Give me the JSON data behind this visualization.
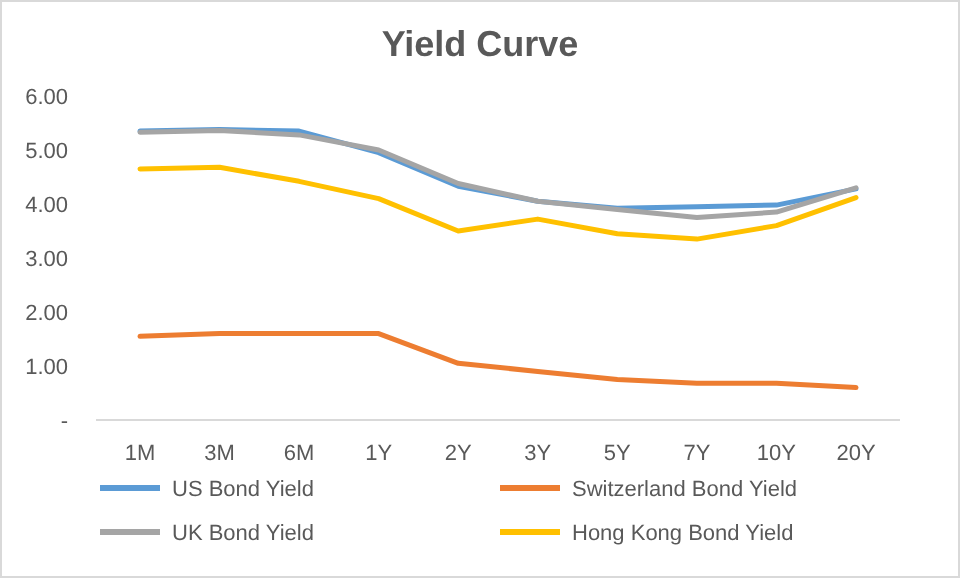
{
  "chart_data": {
    "type": "line",
    "title": "Yield Curve",
    "categories": [
      "1M",
      "3M",
      "6M",
      "1Y",
      "2Y",
      "3Y",
      "5Y",
      "7Y",
      "10Y",
      "20Y"
    ],
    "series": [
      {
        "name": "US Bond Yield",
        "color": "#5b9bd5",
        "values": [
          5.35,
          5.38,
          5.35,
          4.95,
          4.33,
          4.05,
          3.92,
          3.95,
          3.98,
          4.28
        ]
      },
      {
        "name": "Switzerland Bond Yield",
        "color": "#ed7d31",
        "values": [
          1.55,
          1.6,
          1.6,
          1.6,
          1.05,
          0.9,
          0.75,
          0.68,
          0.68,
          0.6
        ]
      },
      {
        "name": "UK Bond Yield",
        "color": "#a5a5a5",
        "values": [
          5.33,
          5.36,
          5.28,
          5.0,
          4.38,
          4.05,
          3.9,
          3.75,
          3.85,
          4.3
        ]
      },
      {
        "name": "Hong Kong Bond Yield",
        "color": "#ffc000",
        "values": [
          4.65,
          4.68,
          4.42,
          4.1,
          3.5,
          3.72,
          3.45,
          3.35,
          3.6,
          4.12
        ]
      }
    ],
    "ylim": [
      0,
      6
    ],
    "yticks": [
      {
        "value": 0,
        "label": "-"
      },
      {
        "value": 1,
        "label": "1.00"
      },
      {
        "value": 2,
        "label": "2.00"
      },
      {
        "value": 3,
        "label": "3.00"
      },
      {
        "value": 4,
        "label": "4.00"
      },
      {
        "value": 5,
        "label": "5.00"
      },
      {
        "value": 6,
        "label": "6.00"
      }
    ],
    "legend": "bottom",
    "marker": "none",
    "line_style": "solid"
  }
}
